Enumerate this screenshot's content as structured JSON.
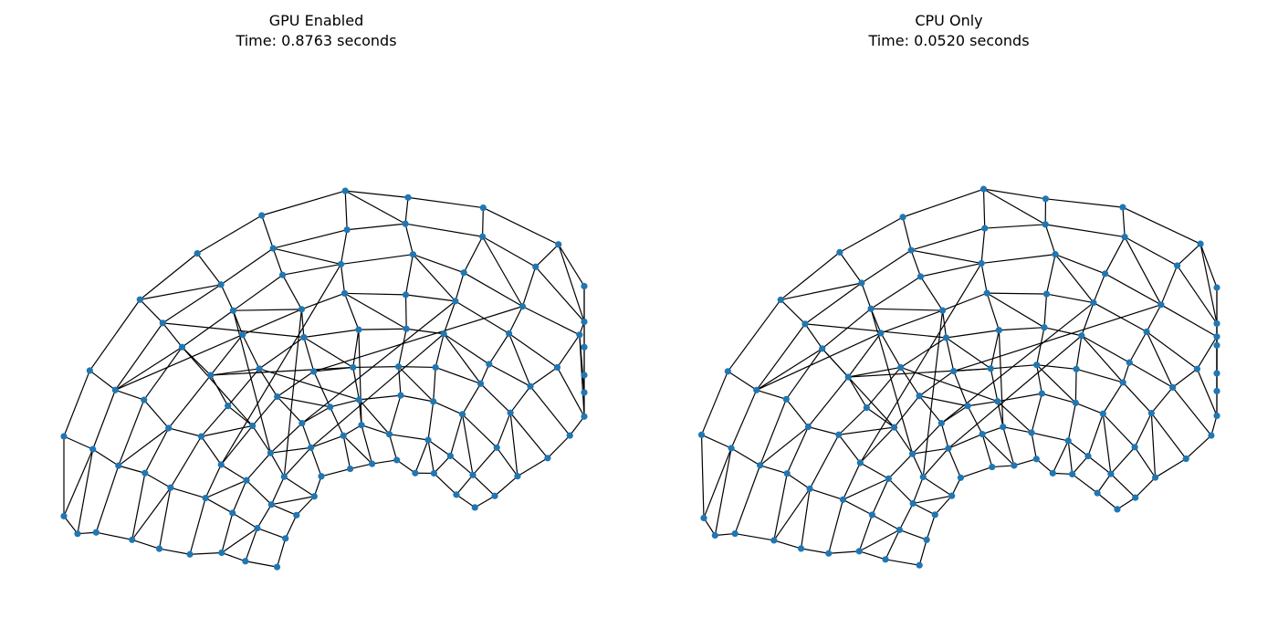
{
  "panels": [
    {
      "title_line1": "GPU Enabled",
      "title_line2": "Time: 0.8763 seconds"
    },
    {
      "title_line1": "CPU Only",
      "title_line2": "Time: 0.0520 seconds"
    }
  ],
  "node_color": "#1f77b4",
  "edge_color": "#000000"
}
